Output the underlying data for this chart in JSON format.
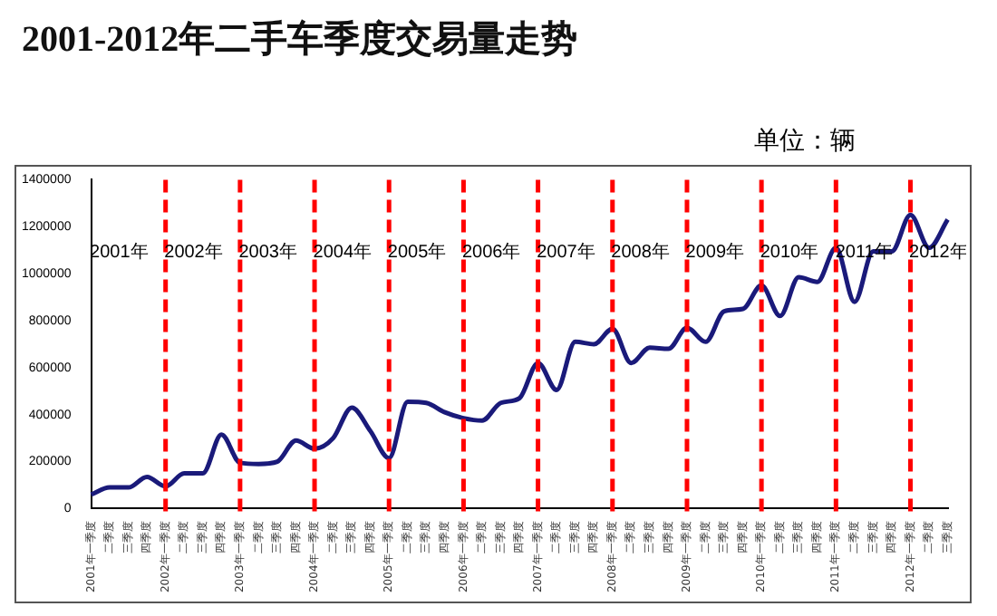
{
  "chart_data": {
    "type": "line",
    "title": "2001-2012年二手车季度交易量走势",
    "subtitle": "单位：辆",
    "categories": [
      "2001年一季度",
      "二季度",
      "三季度",
      "四季度",
      "2002年一季度",
      "二季度",
      "三季度",
      "四季度",
      "2003年一季度",
      "二季度",
      "三季度",
      "四季度",
      "2004年一季度",
      "二季度",
      "三季度",
      "四季度",
      "2005年一季度",
      "二季度",
      "三季度",
      "四季度",
      "2006年一季度",
      "二季度",
      "三季度",
      "四季度",
      "2007年一季度",
      "二季度",
      "三季度",
      "四季度",
      "2008年一季度",
      "二季度",
      "三季度",
      "四季度",
      "2009年一季度",
      "二季度",
      "三季度",
      "四季度",
      "2010年一季度",
      "二季度",
      "三季度",
      "四季度",
      "2011年一季度",
      "二季度",
      "三季度",
      "四季度",
      "2012年一季度",
      "二季度",
      "三季度"
    ],
    "series": [
      {
        "color": "#1a1a7a",
        "values": [
          60000,
          90000,
          90000,
          135000,
          95000,
          150000,
          150000,
          315000,
          195000,
          190000,
          200000,
          290000,
          255000,
          300000,
          430000,
          330000,
          215000,
          455000,
          450000,
          410000,
          385000,
          375000,
          450000,
          470000,
          620000,
          505000,
          710000,
          700000,
          765000,
          620000,
          685000,
          680000,
          770000,
          710000,
          840000,
          850000,
          950000,
          820000,
          985000,
          965000,
          1110000,
          880000,
          1095000,
          1095000,
          1250000,
          1110000,
          1230000
        ]
      }
    ],
    "ylim": [
      0,
      1400000
    ],
    "yticks": [
      0,
      200000,
      400000,
      600000,
      800000,
      1000000,
      1200000,
      1400000
    ],
    "grid": false,
    "legend": false,
    "marker": "none",
    "line_style": "solid",
    "ref_lines": [
      {
        "axis": "x",
        "value": "2002年一季度",
        "color": "#ff0000",
        "line_style": "dashed"
      },
      {
        "axis": "x",
        "value": "2003年一季度",
        "color": "#ff0000",
        "line_style": "dashed"
      },
      {
        "axis": "x",
        "value": "2004年一季度",
        "color": "#ff0000",
        "line_style": "dashed"
      },
      {
        "axis": "x",
        "value": "2005年一季度",
        "color": "#ff0000",
        "line_style": "dashed"
      },
      {
        "axis": "x",
        "value": "2006年一季度",
        "color": "#ff0000",
        "line_style": "dashed"
      },
      {
        "axis": "x",
        "value": "2007年一季度",
        "color": "#ff0000",
        "line_style": "dashed"
      },
      {
        "axis": "x",
        "value": "2008年一季度",
        "color": "#ff0000",
        "line_style": "dashed"
      },
      {
        "axis": "x",
        "value": "2009年一季度",
        "color": "#ff0000",
        "line_style": "dashed"
      },
      {
        "axis": "x",
        "value": "2010年一季度",
        "color": "#ff0000",
        "line_style": "dashed"
      },
      {
        "axis": "x",
        "value": "2011年一季度",
        "color": "#ff0000",
        "line_style": "dashed"
      },
      {
        "axis": "x",
        "value": "2012年一季度",
        "color": "#ff0000",
        "line_style": "dashed"
      }
    ],
    "annotations": [
      "2001年",
      "2002年",
      "2003年",
      "2004年",
      "2005年",
      "2006年",
      "2007年",
      "2008年",
      "2009年",
      "2010年",
      "2011年",
      "2012年"
    ]
  }
}
